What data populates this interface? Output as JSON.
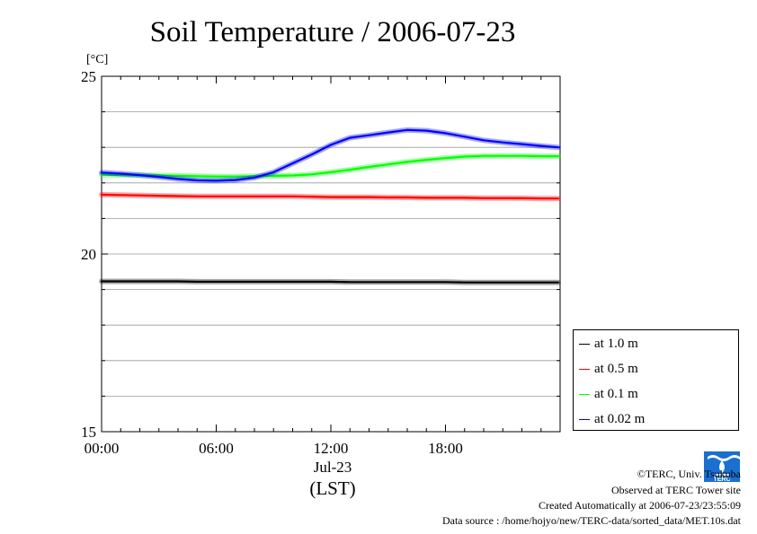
{
  "chart_data": {
    "type": "line",
    "title": "Soil Temperature / 2006-07-23",
    "ylabel": "[°C]",
    "xlabel": "(LST)",
    "x_date_label": "Jul-23",
    "ylim": [
      15,
      25
    ],
    "xlim": [
      0,
      24
    ],
    "y_ticks": [
      15,
      20,
      25
    ],
    "y_minor_step": 1,
    "x_ticks": [
      {
        "value": 0,
        "label": "00:00"
      },
      {
        "value": 6,
        "label": "06:00"
      },
      {
        "value": 12,
        "label": "12:00"
      },
      {
        "value": 18,
        "label": "18:00"
      }
    ],
    "grid": "horizontal",
    "legend_position": "right-bottom",
    "x": [
      0,
      1,
      2,
      3,
      4,
      5,
      6,
      7,
      8,
      9,
      10,
      11,
      12,
      13,
      14,
      15,
      16,
      17,
      18,
      19,
      20,
      21,
      22,
      23,
      23.9
    ],
    "series": [
      {
        "name": "at 1.0 m",
        "color": "#000000",
        "values": [
          19.23,
          19.23,
          19.23,
          19.23,
          19.23,
          19.22,
          19.22,
          19.22,
          19.22,
          19.22,
          19.22,
          19.22,
          19.22,
          19.21,
          19.21,
          19.21,
          19.21,
          19.21,
          19.21,
          19.2,
          19.2,
          19.2,
          19.2,
          19.2,
          19.2
        ]
      },
      {
        "name": "at 0.5 m",
        "color": "#ff0000",
        "values": [
          21.67,
          21.66,
          21.65,
          21.64,
          21.63,
          21.62,
          21.62,
          21.62,
          21.62,
          21.62,
          21.62,
          21.61,
          21.6,
          21.6,
          21.6,
          21.59,
          21.59,
          21.58,
          21.58,
          21.58,
          21.57,
          21.57,
          21.57,
          21.56,
          21.56
        ]
      },
      {
        "name": "at 0.1 m",
        "color": "#00ff00",
        "values": [
          22.23,
          22.22,
          22.22,
          22.21,
          22.2,
          22.19,
          22.18,
          22.18,
          22.19,
          22.2,
          22.21,
          22.24,
          22.3,
          22.37,
          22.45,
          22.52,
          22.59,
          22.65,
          22.7,
          22.74,
          22.76,
          22.76,
          22.76,
          22.75,
          22.75
        ]
      },
      {
        "name": "at 0.02 m",
        "color": "#0000ff",
        "values": [
          22.29,
          22.26,
          22.22,
          22.17,
          22.11,
          22.07,
          22.06,
          22.08,
          22.15,
          22.3,
          22.55,
          22.8,
          23.07,
          23.27,
          23.34,
          23.42,
          23.49,
          23.47,
          23.4,
          23.3,
          23.2,
          23.14,
          23.09,
          23.04,
          23.0
        ]
      }
    ]
  },
  "footer": {
    "copyright": "©TERC, Univ. Tsukuba",
    "observed": "Observed at TERC Tower site",
    "created": "Created Automatically at 2006-07-23/23:55:09",
    "source": "Data source : /home/hojyo/new/TERC-data/sorted_data/MET.10s.dat",
    "logo_text": "TERC"
  }
}
